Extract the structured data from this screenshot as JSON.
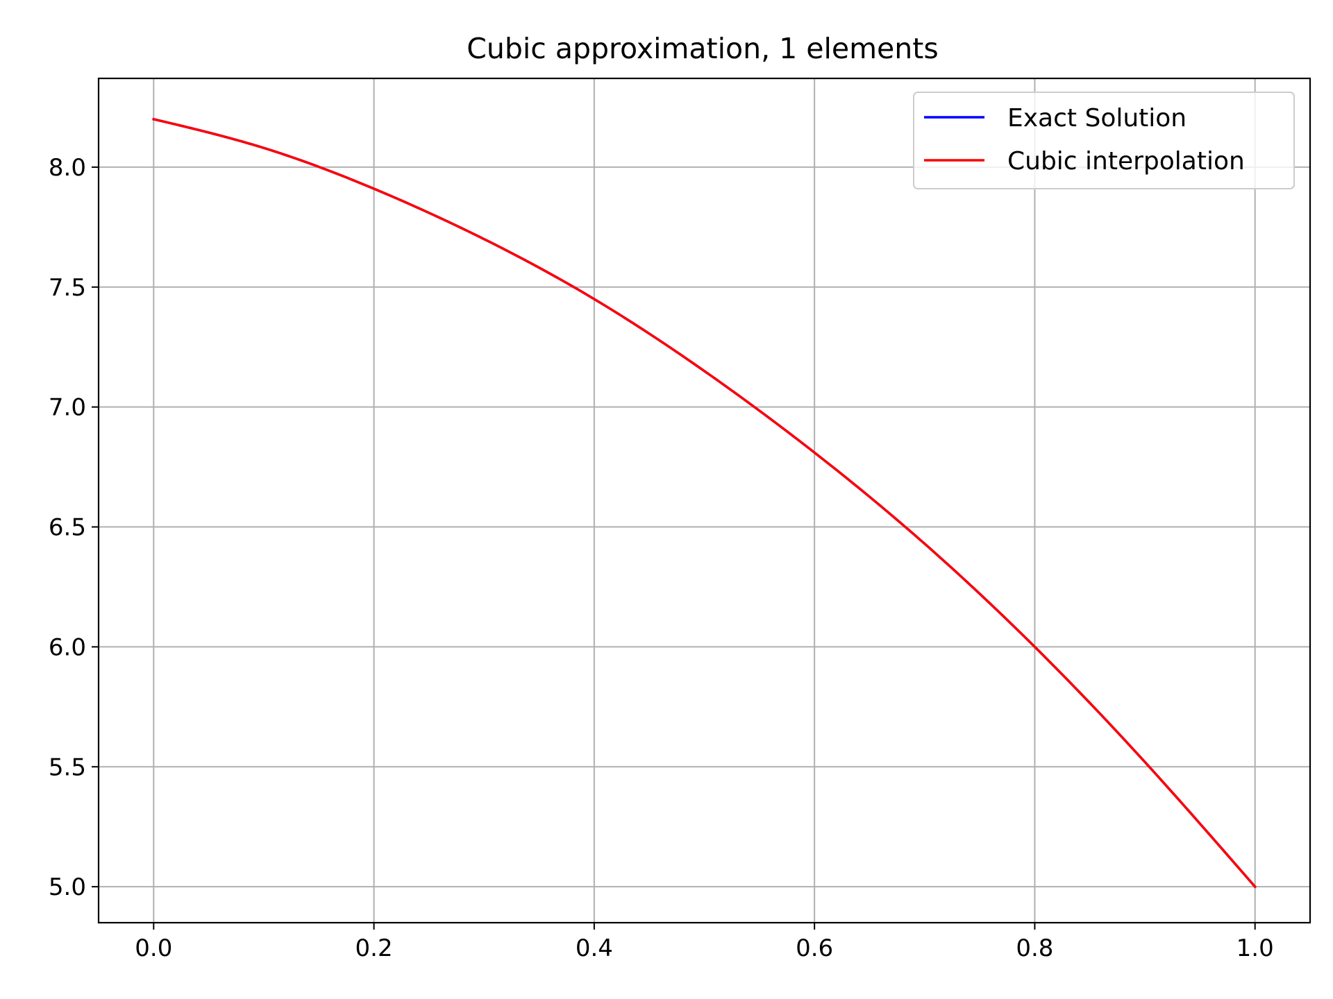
{
  "chart_data": {
    "type": "line",
    "title": "Cubic approximation, 1 elements",
    "xlabel": "",
    "ylabel": "",
    "xlim": [
      -0.05,
      1.05
    ],
    "ylim": [
      4.85,
      8.37
    ],
    "xticks": [
      0.0,
      0.2,
      0.4,
      0.6,
      0.8,
      1.0
    ],
    "xtick_labels": [
      "0.0",
      "0.2",
      "0.4",
      "0.6",
      "0.8",
      "1.0"
    ],
    "yticks": [
      5.0,
      5.5,
      6.0,
      6.5,
      7.0,
      7.5,
      8.0
    ],
    "ytick_labels": [
      "5.0",
      "5.5",
      "6.0",
      "6.5",
      "7.0",
      "7.5",
      "8.0"
    ],
    "grid": true,
    "legend_position": "top-right",
    "series": [
      {
        "name": "Exact Solution",
        "color": "#0000ff",
        "x": [
          0.0,
          0.1,
          0.2,
          0.3,
          0.4,
          0.5,
          0.6,
          0.7,
          0.8,
          0.9,
          1.0
        ],
        "y": [
          8.2,
          8.08,
          7.91,
          7.7,
          7.45,
          7.15,
          6.81,
          6.43,
          6.0,
          5.52,
          5.0
        ]
      },
      {
        "name": "Cubic interpolation",
        "color": "#ff0000",
        "x": [
          0.0,
          0.1,
          0.2,
          0.3,
          0.4,
          0.5,
          0.6,
          0.7,
          0.8,
          0.9,
          1.0
        ],
        "y": [
          8.2,
          8.08,
          7.91,
          7.7,
          7.45,
          7.15,
          6.81,
          6.43,
          6.0,
          5.52,
          5.0
        ]
      }
    ]
  }
}
